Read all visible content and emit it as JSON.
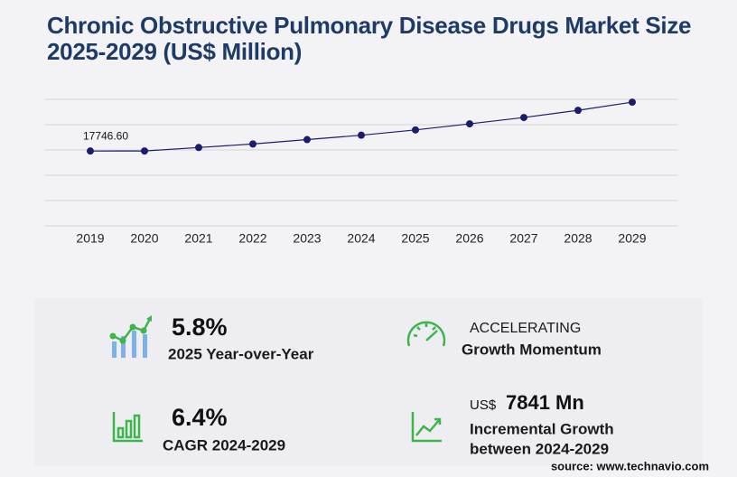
{
  "chart_data": {
    "type": "line",
    "title": "Chronic Obstructive Pulmonary Disease Drugs Market Size 2025-2029 (US$ Million)",
    "categories": [
      "2019",
      "2020",
      "2021",
      "2022",
      "2023",
      "2024",
      "2025",
      "2026",
      "2027",
      "2028",
      "2029"
    ],
    "values": [
      17746.6,
      17760,
      18580,
      19420,
      20460,
      21500,
      22750,
      24200,
      25700,
      27400,
      29341
    ],
    "value_labels": [
      "17746.60",
      null,
      null,
      null,
      null,
      null,
      null,
      null,
      null,
      null,
      null
    ],
    "color": "#1c1c6e",
    "ylim": [
      0,
      30000
    ],
    "yticks": [
      0,
      6000,
      12000,
      18000,
      24000,
      30000
    ],
    "grid": true
  },
  "stats": {
    "yoy": {
      "value": "5.8%",
      "label": "2025 Year-over-Year"
    },
    "momentum": {
      "value": "ACCELERATING",
      "label": "Growth Momentum"
    },
    "cagr": {
      "value": "6.4%",
      "label": "CAGR 2024-2029"
    },
    "incremental": {
      "currency": "US$",
      "value": "7841 Mn",
      "label": "Incremental Growth",
      "period": "between 2024-2029"
    }
  },
  "source": "source: www.technavio.com"
}
